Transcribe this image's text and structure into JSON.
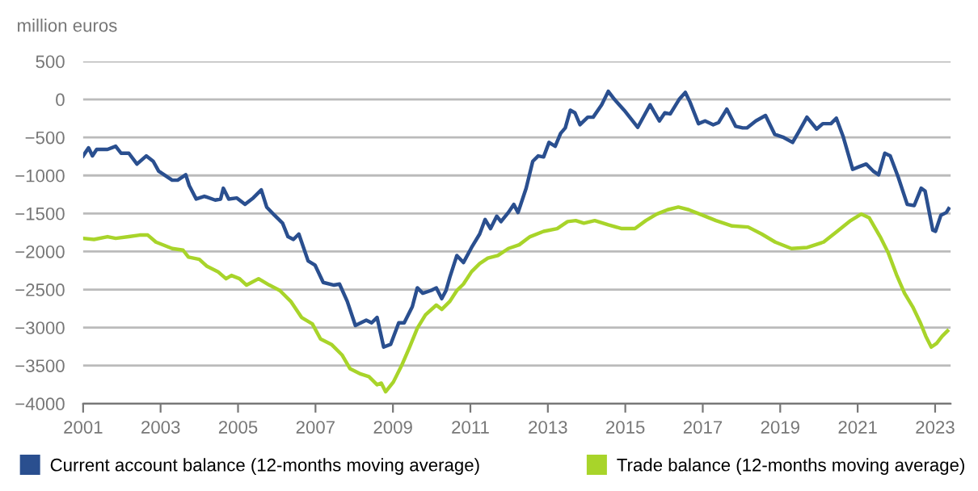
{
  "chart_data": {
    "type": "line",
    "ylabel": "million euros",
    "xlim": [
      2001,
      2023.4
    ],
    "xticks": [
      2001,
      2003,
      2005,
      2007,
      2009,
      2011,
      2013,
      2015,
      2017,
      2019,
      2021,
      2023
    ],
    "ylim": [
      -4000,
      500
    ],
    "yticks": [
      {
        "value": -4000,
        "label": "−4000"
      },
      {
        "value": -3500,
        "label": "−3500"
      },
      {
        "value": -3000,
        "label": "−3000"
      },
      {
        "value": -2500,
        "label": "−2500"
      },
      {
        "value": -2000,
        "label": "−2000"
      },
      {
        "value": -1500,
        "label": "−1500"
      },
      {
        "value": -1000,
        "label": "−1000"
      },
      {
        "value": -500,
        "label": "−500"
      },
      0,
      500
    ],
    "grid": "y",
    "legend": "bottom left",
    "line_style": "solid",
    "series": [
      {
        "name": "Current account balance (12-months moving average)",
        "color": "#2a4f8f",
        "x": [
          2001.0,
          2001.14,
          2001.24,
          2001.35,
          2001.63,
          2001.84,
          2001.98,
          2002.18,
          2002.39,
          2002.63,
          2002.81,
          2002.95,
          2003.3,
          2003.44,
          2003.65,
          2003.74,
          2003.92,
          2004.13,
          2004.41,
          2004.55,
          2004.62,
          2004.76,
          2004.97,
          2005.18,
          2005.39,
          2005.6,
          2005.74,
          2005.94,
          2006.15,
          2006.29,
          2006.43,
          2006.57,
          2006.81,
          2006.99,
          2007.2,
          2007.48,
          2007.62,
          2007.82,
          2008.03,
          2008.17,
          2008.31,
          2008.45,
          2008.59,
          2008.76,
          2008.94,
          2009.15,
          2009.29,
          2009.5,
          2009.63,
          2009.77,
          2009.98,
          2010.12,
          2010.26,
          2010.37,
          2010.47,
          2010.65,
          2010.82,
          2011.03,
          2011.24,
          2011.38,
          2011.52,
          2011.68,
          2011.79,
          2011.98,
          2012.12,
          2012.23,
          2012.44,
          2012.61,
          2012.75,
          2012.89,
          2013.03,
          2013.19,
          2013.33,
          2013.45,
          2013.58,
          2013.7,
          2013.83,
          2014.03,
          2014.17,
          2014.39,
          2014.56,
          2014.72,
          2014.97,
          2015.32,
          2015.64,
          2015.88,
          2016.02,
          2016.16,
          2016.39,
          2016.55,
          2016.67,
          2016.89,
          2017.06,
          2017.27,
          2017.41,
          2017.62,
          2017.85,
          2018.03,
          2018.14,
          2018.37,
          2018.62,
          2018.86,
          2019.07,
          2019.32,
          2019.48,
          2019.69,
          2019.94,
          2020.1,
          2020.31,
          2020.45,
          2020.63,
          2020.87,
          2021.04,
          2021.22,
          2021.4,
          2021.54,
          2021.7,
          2021.84,
          2022.05,
          2022.28,
          2022.46,
          2022.64,
          2022.74,
          2022.94,
          2023.01,
          2023.15,
          2023.29,
          2023.35
        ],
        "values": [
          -743,
          -637,
          -743,
          -658,
          -658,
          -616,
          -708,
          -708,
          -850,
          -743,
          -814,
          -942,
          -1062,
          -1062,
          -991,
          -1133,
          -1310,
          -1274,
          -1324,
          -1310,
          -1168,
          -1310,
          -1296,
          -1380,
          -1296,
          -1189,
          -1416,
          -1522,
          -1628,
          -1805,
          -1841,
          -1770,
          -2124,
          -2181,
          -2407,
          -2442,
          -2428,
          -2655,
          -2973,
          -2938,
          -2903,
          -2938,
          -2867,
          -3257,
          -3221,
          -2938,
          -2938,
          -2726,
          -2478,
          -2549,
          -2513,
          -2478,
          -2620,
          -2513,
          -2336,
          -2053,
          -2145,
          -1947,
          -1770,
          -1579,
          -1699,
          -1536,
          -1607,
          -1487,
          -1381,
          -1487,
          -1168,
          -814,
          -743,
          -757,
          -566,
          -616,
          -446,
          -375,
          -142,
          -177,
          -333,
          -234,
          -234,
          -71,
          106,
          0,
          -142,
          -368,
          -71,
          -283,
          -177,
          -191,
          0,
          92,
          -35,
          -319,
          -283,
          -333,
          -304,
          -127,
          -354,
          -375,
          -375,
          -283,
          -212,
          -460,
          -496,
          -566,
          -425,
          -234,
          -389,
          -319,
          -319,
          -248,
          -496,
          -920,
          -885,
          -850,
          -942,
          -991,
          -708,
          -743,
          -1027,
          -1381,
          -1395,
          -1168,
          -1204,
          -1720,
          -1735,
          -1522,
          -1487,
          -1437
        ]
      },
      {
        "name": "Trade balance (12-months moving average)",
        "color": "#a8d42a",
        "x": [
          2001.0,
          2001.28,
          2001.63,
          2001.84,
          2002.18,
          2002.46,
          2002.67,
          2002.88,
          2003.3,
          2003.58,
          2003.72,
          2004.0,
          2004.2,
          2004.48,
          2004.69,
          2004.83,
          2005.04,
          2005.22,
          2005.53,
          2005.81,
          2006.08,
          2006.36,
          2006.64,
          2006.92,
          2007.13,
          2007.41,
          2007.69,
          2007.89,
          2008.17,
          2008.38,
          2008.59,
          2008.7,
          2008.81,
          2009.01,
          2009.22,
          2009.43,
          2009.63,
          2009.84,
          2010.12,
          2010.26,
          2010.47,
          2010.65,
          2010.82,
          2011.03,
          2011.24,
          2011.45,
          2011.71,
          2011.98,
          2012.26,
          2012.54,
          2012.89,
          2013.24,
          2013.51,
          2013.72,
          2013.93,
          2014.21,
          2014.56,
          2014.91,
          2015.25,
          2015.53,
          2015.81,
          2016.09,
          2016.37,
          2016.64,
          2016.99,
          2017.34,
          2017.76,
          2018.17,
          2018.52,
          2018.87,
          2019.29,
          2019.7,
          2020.12,
          2020.47,
          2020.82,
          2021.09,
          2021.3,
          2021.58,
          2021.79,
          2022.0,
          2022.21,
          2022.42,
          2022.62,
          2022.76,
          2022.9,
          2023.04,
          2023.18,
          2023.32
        ],
        "values": [
          -1827,
          -1841,
          -1805,
          -1827,
          -1805,
          -1784,
          -1784,
          -1876,
          -1961,
          -1982,
          -2074,
          -2103,
          -2195,
          -2265,
          -2358,
          -2315,
          -2358,
          -2442,
          -2358,
          -2442,
          -2513,
          -2655,
          -2867,
          -2952,
          -3150,
          -3221,
          -3363,
          -3540,
          -3611,
          -3646,
          -3752,
          -3731,
          -3844,
          -3717,
          -3504,
          -3257,
          -3009,
          -2832,
          -2704,
          -2761,
          -2655,
          -2513,
          -2428,
          -2265,
          -2159,
          -2088,
          -2053,
          -1961,
          -1912,
          -1805,
          -1735,
          -1699,
          -1607,
          -1593,
          -1628,
          -1593,
          -1650,
          -1699,
          -1699,
          -1593,
          -1508,
          -1451,
          -1416,
          -1451,
          -1522,
          -1593,
          -1664,
          -1678,
          -1770,
          -1876,
          -1961,
          -1947,
          -1876,
          -1735,
          -1593,
          -1508,
          -1558,
          -1805,
          -2018,
          -2301,
          -2549,
          -2726,
          -2938,
          -3115,
          -3257,
          -3207,
          -3115,
          -3044
        ]
      }
    ]
  }
}
